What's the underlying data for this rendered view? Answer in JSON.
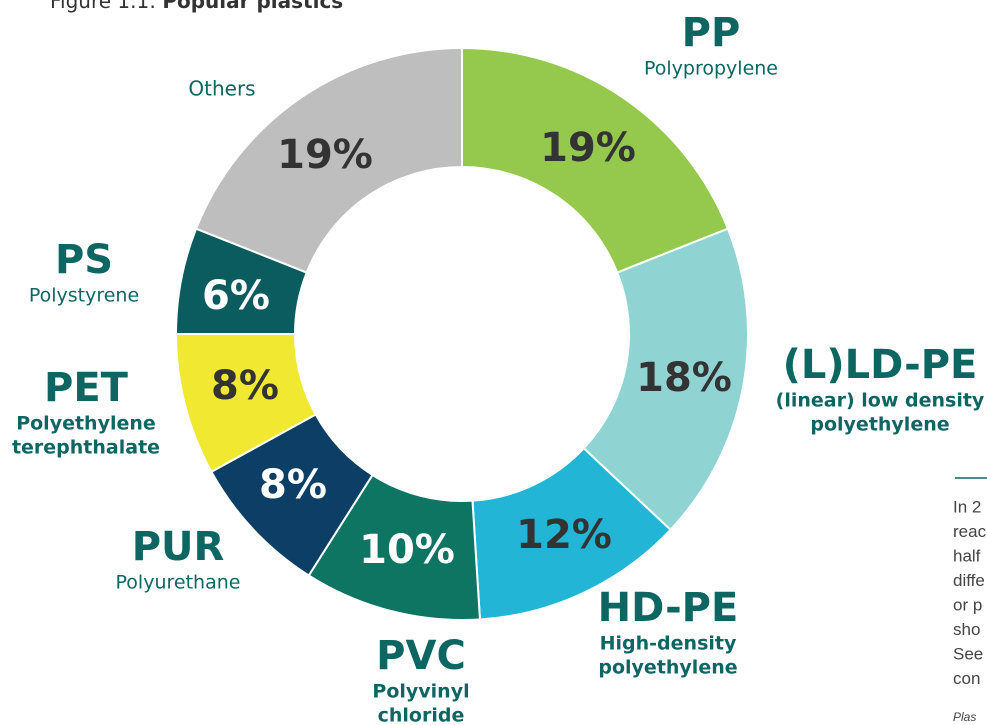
{
  "chart_data": {
    "type": "donut",
    "figure_label": "Figure 1.1:",
    "title": "Popular plastics",
    "categories": [
      "PP",
      "(L)LD-PE",
      "HD-PE",
      "PVC",
      "PUR",
      "PET",
      "PS",
      "Others"
    ],
    "descriptions": [
      [
        "Polypropylene"
      ],
      [
        "(linear) low density",
        "polyethylene"
      ],
      [
        "High-density",
        "polyethylene"
      ],
      [
        "Polyvinyl",
        "chloride"
      ],
      [
        "Polyurethane"
      ],
      [
        "Polyethylene",
        "terephthalate"
      ],
      [
        "Polystyrene"
      ],
      null
    ],
    "values": [
      19,
      18,
      12,
      10,
      8,
      8,
      6,
      19
    ],
    "value_labels": [
      "19%",
      "18%",
      "12%",
      "10%",
      "8%",
      "8%",
      "6%",
      "19%"
    ],
    "colors": [
      "#94c94e",
      "#8fd4d3",
      "#22b5d6",
      "#0e7563",
      "#0d3f66",
      "#f0e831",
      "#0b5c5e",
      "#bebebf"
    ],
    "side_text": [
      "In 2",
      "reac",
      "half",
      "diffe",
      "or p",
      "sho",
      "See",
      "con"
    ],
    "side_source": "Plas"
  }
}
